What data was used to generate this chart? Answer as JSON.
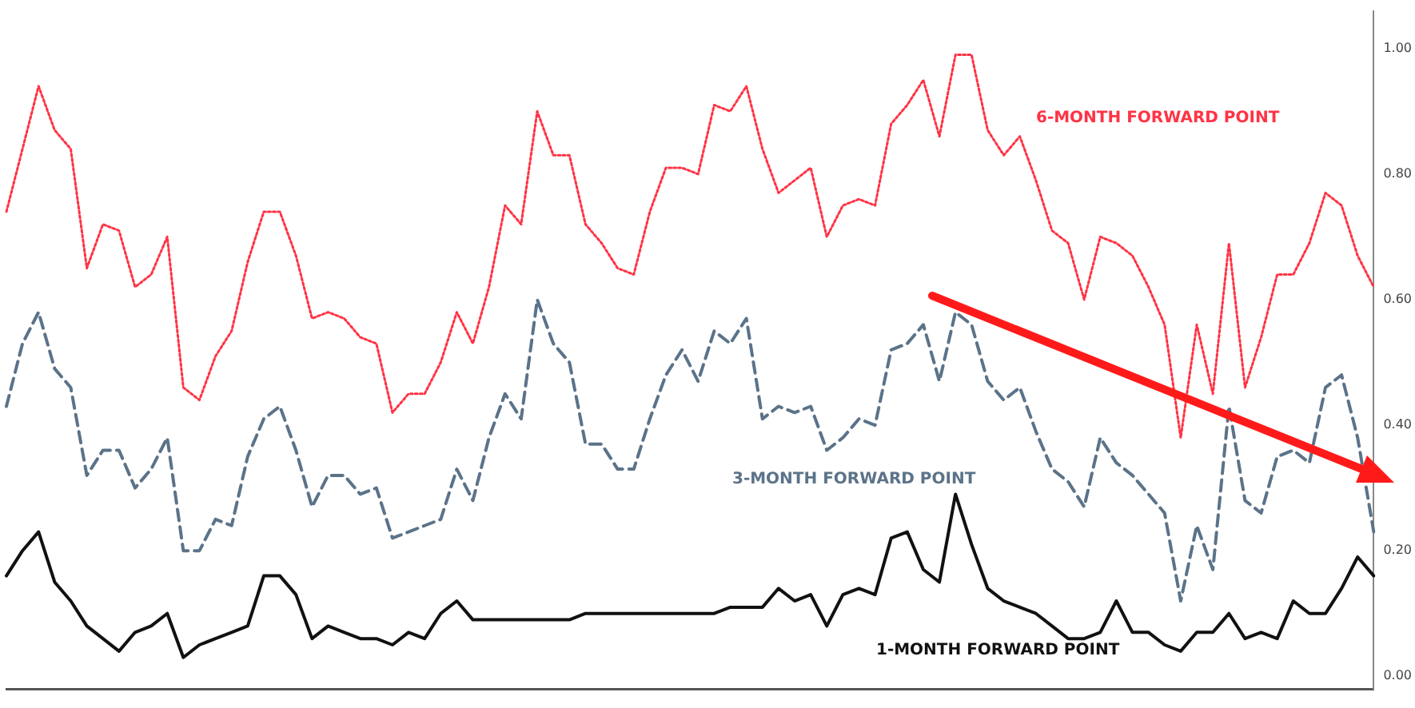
{
  "chart_data": {
    "type": "line",
    "categories": [
      null,
      null,
      null,
      null,
      null,
      null,
      null,
      null,
      null,
      null,
      null,
      null,
      null,
      null,
      null,
      null,
      null,
      null,
      null,
      null,
      null,
      null,
      null,
      null,
      null,
      null,
      null,
      null,
      null,
      null,
      null,
      null,
      null,
      null,
      null,
      null,
      null,
      null,
      null,
      null,
      null,
      null,
      null,
      null,
      null,
      null,
      null,
      null,
      null,
      null,
      null,
      null,
      null,
      null,
      null,
      null,
      null,
      null,
      null,
      null,
      null,
      null,
      null,
      null,
      null,
      null,
      null,
      null,
      null,
      null,
      null,
      null,
      null,
      null,
      null,
      null,
      null,
      null,
      null,
      null,
      null,
      null,
      null,
      null,
      null,
      null
    ],
    "series": [
      {
        "name": "6-MONTH FORWARD POINT",
        "color": "#ff3344",
        "line_style": "dotted",
        "values": [
          0.74,
          0.84,
          0.94,
          0.87,
          0.84,
          0.65,
          0.72,
          0.71,
          0.62,
          0.64,
          0.7,
          0.46,
          0.44,
          0.51,
          0.55,
          0.66,
          0.74,
          0.74,
          0.67,
          0.57,
          0.58,
          0.57,
          0.54,
          0.53,
          0.42,
          0.45,
          0.45,
          0.5,
          0.58,
          0.53,
          0.62,
          0.75,
          0.72,
          0.9,
          0.83,
          0.83,
          0.72,
          0.69,
          0.65,
          0.64,
          0.74,
          0.81,
          0.81,
          0.8,
          0.91,
          0.9,
          0.94,
          0.84,
          0.77,
          0.79,
          0.81,
          0.7,
          0.75,
          0.76,
          0.75,
          0.88,
          0.91,
          0.95,
          0.86,
          0.99,
          0.99,
          0.87,
          0.83,
          0.86,
          0.79,
          0.71,
          0.69,
          0.6,
          0.7,
          0.69,
          0.67,
          0.62,
          0.56,
          0.38,
          0.56,
          0.45,
          0.69,
          0.46,
          0.54,
          0.64,
          0.64,
          0.69,
          0.77,
          0.75,
          0.67,
          0.62
        ]
      },
      {
        "name": "3-MONTH FORWARD POINT",
        "color": "#5b7389",
        "line_style": "dashed",
        "values": [
          0.43,
          0.53,
          0.58,
          0.49,
          0.46,
          0.32,
          0.36,
          0.36,
          0.3,
          0.33,
          0.38,
          0.2,
          0.2,
          0.25,
          0.24,
          0.35,
          0.41,
          0.43,
          0.36,
          0.27,
          0.32,
          0.32,
          0.29,
          0.3,
          0.22,
          0.23,
          0.24,
          0.25,
          0.33,
          0.28,
          0.38,
          0.45,
          0.41,
          0.6,
          0.53,
          0.5,
          0.37,
          0.37,
          0.33,
          0.33,
          0.41,
          0.48,
          0.52,
          0.47,
          0.55,
          0.53,
          0.57,
          0.41,
          0.43,
          0.42,
          0.43,
          0.36,
          0.38,
          0.41,
          0.4,
          0.52,
          0.53,
          0.56,
          0.47,
          0.58,
          0.56,
          0.47,
          0.44,
          0.46,
          0.39,
          0.33,
          0.31,
          0.27,
          0.38,
          0.34,
          0.32,
          0.29,
          0.26,
          0.12,
          0.24,
          0.17,
          0.43,
          0.28,
          0.26,
          0.35,
          0.36,
          0.34,
          0.46,
          0.48,
          0.38,
          0.23
        ]
      },
      {
        "name": "1-MONTH FORWARD POINT",
        "color": "#111111",
        "line_style": "solid",
        "values": [
          0.16,
          0.2,
          0.23,
          0.15,
          0.12,
          0.08,
          0.06,
          0.04,
          0.07,
          0.08,
          0.1,
          0.03,
          0.05,
          0.06,
          0.07,
          0.08,
          0.16,
          0.16,
          0.13,
          0.06,
          0.08,
          0.07,
          0.06,
          0.06,
          0.05,
          0.07,
          0.06,
          0.1,
          0.12,
          0.09,
          0.09,
          0.09,
          0.09,
          0.09,
          0.09,
          0.09,
          0.1,
          0.1,
          0.1,
          0.1,
          0.1,
          0.1,
          0.1,
          0.1,
          0.1,
          0.11,
          0.11,
          0.11,
          0.14,
          0.12,
          0.13,
          0.08,
          0.13,
          0.14,
          0.13,
          0.22,
          0.23,
          0.17,
          0.15,
          0.29,
          0.21,
          0.14,
          0.12,
          0.11,
          0.1,
          0.08,
          0.06,
          0.06,
          0.07,
          0.12,
          0.07,
          0.07,
          0.05,
          0.04,
          0.07,
          0.07,
          0.1,
          0.06,
          0.07,
          0.06,
          0.12,
          0.1,
          0.1,
          0.14,
          0.19,
          0.16
        ]
      }
    ],
    "ylim": [
      -0.02,
      1.06
    ],
    "yticks": [
      {
        "value": 0,
        "label": "0.00"
      },
      {
        "value": 0.2,
        "label": "0.20"
      },
      {
        "value": 0.4,
        "label": "0.40"
      },
      {
        "value": 0.6,
        "label": "0.60"
      },
      {
        "value": 0.8,
        "label": "0.80"
      },
      {
        "value": 1,
        "label": "1.00"
      }
    ],
    "tick_labels": "y",
    "grid": false,
    "legend": false
  }
}
